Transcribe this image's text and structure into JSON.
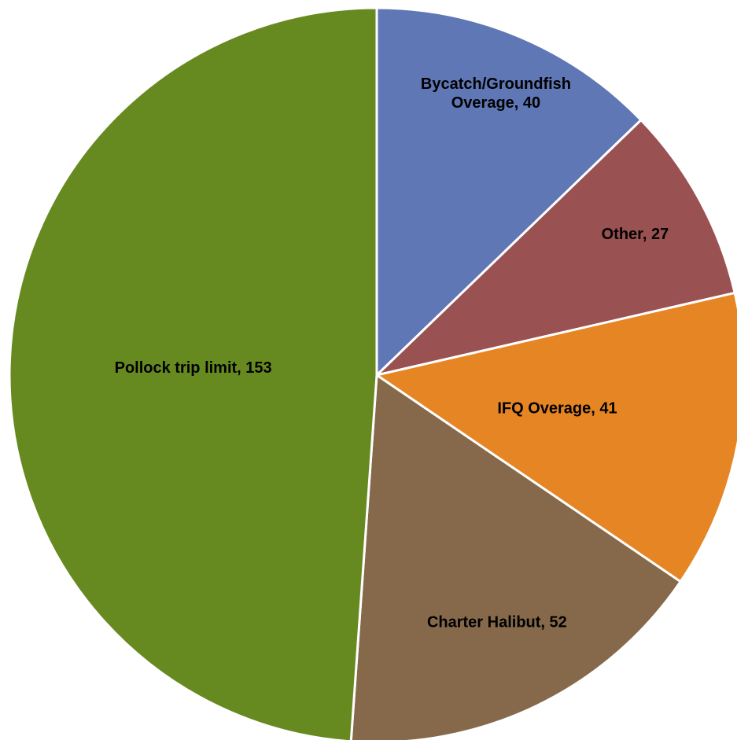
{
  "chart_data": {
    "type": "pie",
    "values": [
      40,
      27,
      41,
      52,
      153
    ],
    "value_labels": [
      "Bycatch/Groundfish Overage, 40",
      "Other, 27",
      "IFQ Overage, 41",
      "Charter Halibut, 52",
      "Pollock trip limit, 153"
    ],
    "colors": [
      "#5f77b5",
      "#9a5151",
      "#e68524",
      "#85694a",
      "#668a20"
    ],
    "start_angle": 0,
    "direction": "clockwise"
  }
}
